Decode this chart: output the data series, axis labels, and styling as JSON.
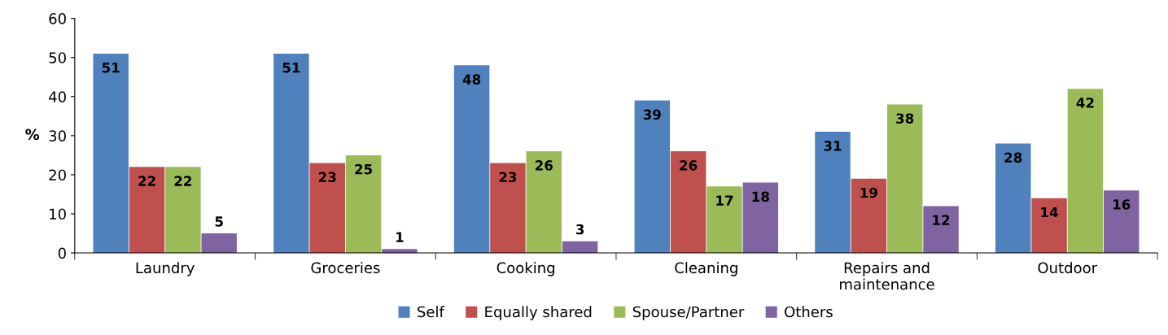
{
  "chart_data": {
    "type": "bar",
    "ylabel": "%",
    "categories": [
      "Laundry",
      "Groceries",
      "Cooking",
      "Cleaning",
      "Repairs and\nmaintenance",
      "Outdoor"
    ],
    "series": [
      {
        "name": "Self",
        "color": "#4f81bd",
        "values": [
          51,
          51,
          48,
          39,
          31,
          28
        ]
      },
      {
        "name": "Equally shared",
        "color": "#c0504d",
        "values": [
          22,
          23,
          23,
          26,
          19,
          14
        ]
      },
      {
        "name": "Spouse/Partner",
        "color": "#9bbb59",
        "values": [
          22,
          25,
          26,
          17,
          38,
          42
        ]
      },
      {
        "name": "Others",
        "color": "#8064a2",
        "values": [
          5,
          1,
          3,
          18,
          12,
          16
        ]
      }
    ],
    "ylim": [
      0,
      60
    ],
    "yticks": [
      0,
      10,
      20,
      30,
      40,
      50,
      60
    ],
    "grid": false,
    "legend": "bottom",
    "data_labels": true
  }
}
